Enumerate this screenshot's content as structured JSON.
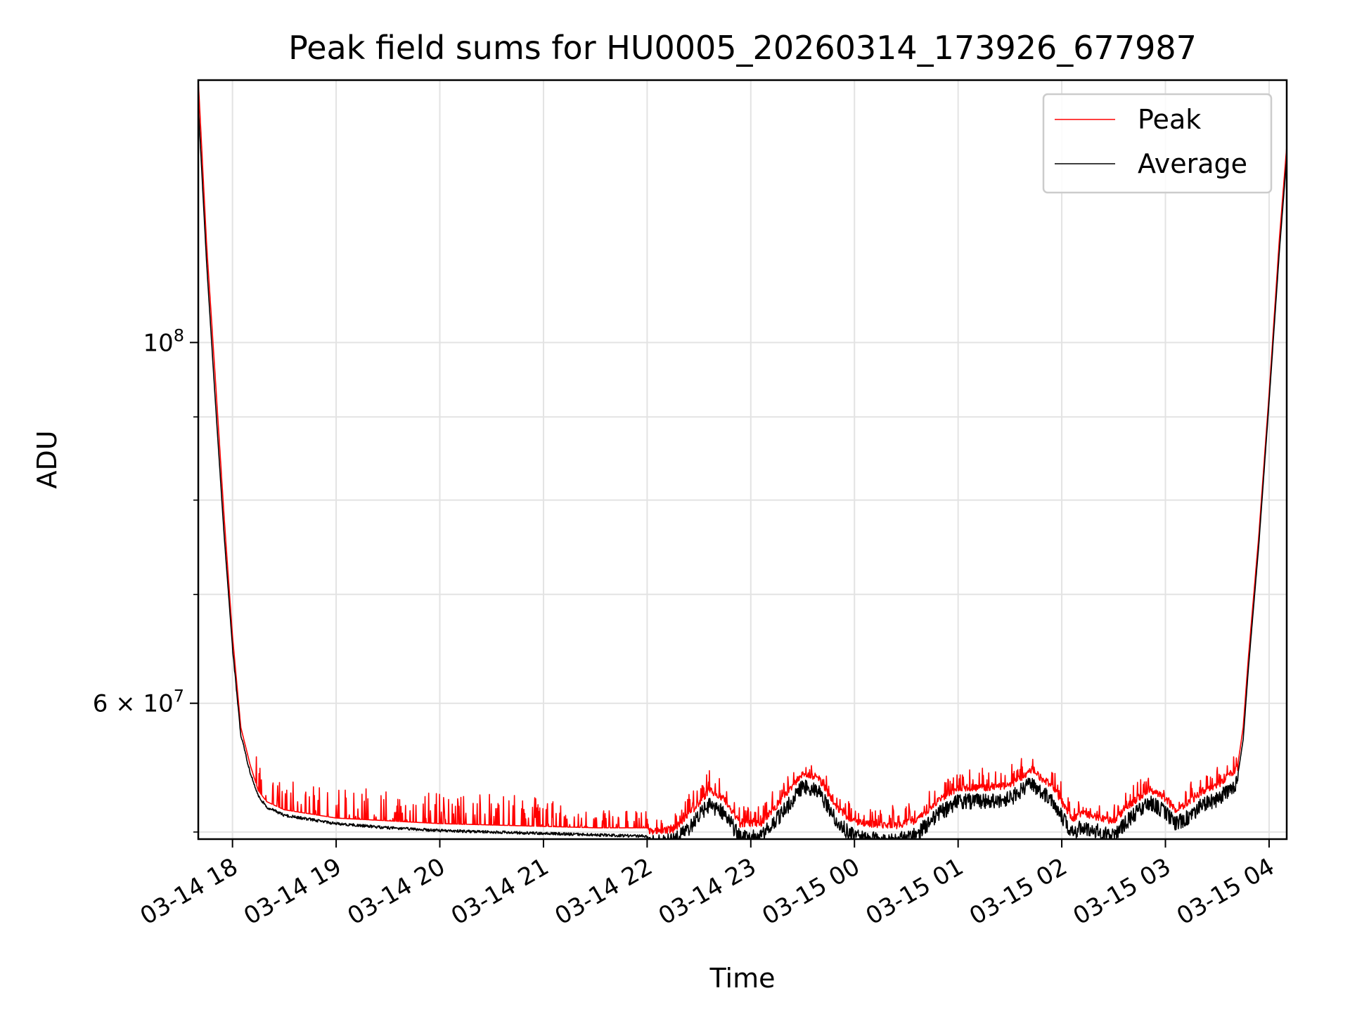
{
  "chart_data": {
    "type": "line",
    "title": "Peak field sums for HU0005_20260314_173926_677987",
    "xlabel": "Time",
    "ylabel": "ADU",
    "yscale": "log",
    "ylim": [
      49500000,
      145000000
    ],
    "xlim_hours": [
      17.67,
      28.17
    ],
    "grid": true,
    "legend_position": "top-right",
    "x_ticks": [
      {
        "hour": 18,
        "label": "03-14 18"
      },
      {
        "hour": 19,
        "label": "03-14 19"
      },
      {
        "hour": 20,
        "label": "03-14 20"
      },
      {
        "hour": 21,
        "label": "03-14 21"
      },
      {
        "hour": 22,
        "label": "03-14 22"
      },
      {
        "hour": 23,
        "label": "03-14 23"
      },
      {
        "hour": 24,
        "label": "03-15 00"
      },
      {
        "hour": 25,
        "label": "03-15 01"
      },
      {
        "hour": 26,
        "label": "03-15 02"
      },
      {
        "hour": 27,
        "label": "03-15 03"
      },
      {
        "hour": 28,
        "label": "03-15 04"
      }
    ],
    "y_major_ticks": [
      {
        "value": 100000000,
        "base": "10",
        "exp": "8"
      },
      {
        "value": 60000000,
        "base": "6 × 10",
        "exp": "7"
      }
    ],
    "y_minor_ticks": [
      50000000,
      70000000,
      80000000,
      90000000
    ],
    "series": [
      {
        "name": "Peak",
        "color": "#ff0000",
        "x": [
          17.67,
          17.75,
          17.83,
          17.92,
          18.0,
          18.08,
          18.17,
          18.25,
          18.33,
          18.5,
          18.75,
          19.0,
          19.5,
          20.0,
          20.5,
          21.0,
          21.5,
          22.0,
          22.25,
          22.4,
          22.6,
          22.75,
          22.9,
          23.1,
          23.3,
          23.5,
          23.65,
          23.85,
          24.0,
          24.2,
          24.4,
          24.6,
          24.8,
          25.0,
          25.25,
          25.5,
          25.7,
          25.9,
          26.1,
          26.2,
          26.35,
          26.5,
          26.65,
          26.85,
          27.0,
          27.1,
          27.25,
          27.35,
          27.5,
          27.7,
          27.75,
          27.8,
          27.9,
          28.0,
          28.1,
          28.17
        ],
        "y": [
          145000000,
          115000000,
          96000000,
          78000000,
          66000000,
          58000000,
          55000000,
          53000000,
          52200000,
          51600000,
          51300000,
          51000000,
          50800000,
          50600000,
          50500000,
          50400000,
          50300000,
          50300000,
          50400000,
          51500000,
          53300000,
          52600000,
          50800000,
          50900000,
          52600000,
          54600000,
          54300000,
          51800000,
          51000000,
          50800000,
          50700000,
          51100000,
          52500000,
          53500000,
          53500000,
          53700000,
          54800000,
          53700000,
          51200000,
          51600000,
          51300000,
          51000000,
          52200000,
          53400000,
          52700000,
          51800000,
          52500000,
          53200000,
          53600000,
          55100000,
          58000000,
          64000000,
          76000000,
          93000000,
          116000000,
          132000000
        ]
      },
      {
        "name": "Average",
        "color": "#000000",
        "x": [
          17.67,
          17.75,
          17.83,
          17.92,
          18.0,
          18.08,
          18.17,
          18.25,
          18.33,
          18.5,
          18.75,
          19.0,
          19.5,
          20.0,
          20.5,
          21.0,
          21.5,
          22.0,
          22.25,
          22.4,
          22.6,
          22.75,
          22.9,
          23.1,
          23.3,
          23.5,
          23.65,
          23.85,
          24.0,
          24.2,
          24.4,
          24.6,
          24.8,
          25.0,
          25.25,
          25.5,
          25.7,
          25.9,
          26.1,
          26.2,
          26.35,
          26.5,
          26.65,
          26.85,
          27.0,
          27.1,
          27.25,
          27.35,
          27.5,
          27.7,
          27.75,
          27.8,
          27.9,
          28.0,
          28.1,
          28.17
        ],
        "y": [
          140000000,
          112000000,
          93000000,
          76000000,
          65000000,
          57500000,
          54500000,
          52700000,
          51900000,
          51300000,
          51000000,
          50700000,
          50400000,
          50200000,
          50100000,
          50000000,
          49900000,
          49800000,
          49900000,
          50800000,
          52600000,
          51900000,
          50100000,
          50200000,
          51900000,
          53900000,
          53600000,
          51100000,
          50200000,
          50000000,
          49900000,
          50400000,
          51800000,
          52800000,
          52800000,
          53000000,
          54100000,
          53000000,
          50500000,
          50900000,
          50600000,
          50300000,
          51500000,
          52700000,
          52000000,
          51100000,
          51800000,
          52500000,
          52900000,
          54300000,
          57000000,
          63000000,
          75000000,
          92000000,
          114000000,
          130000000
        ]
      }
    ]
  }
}
